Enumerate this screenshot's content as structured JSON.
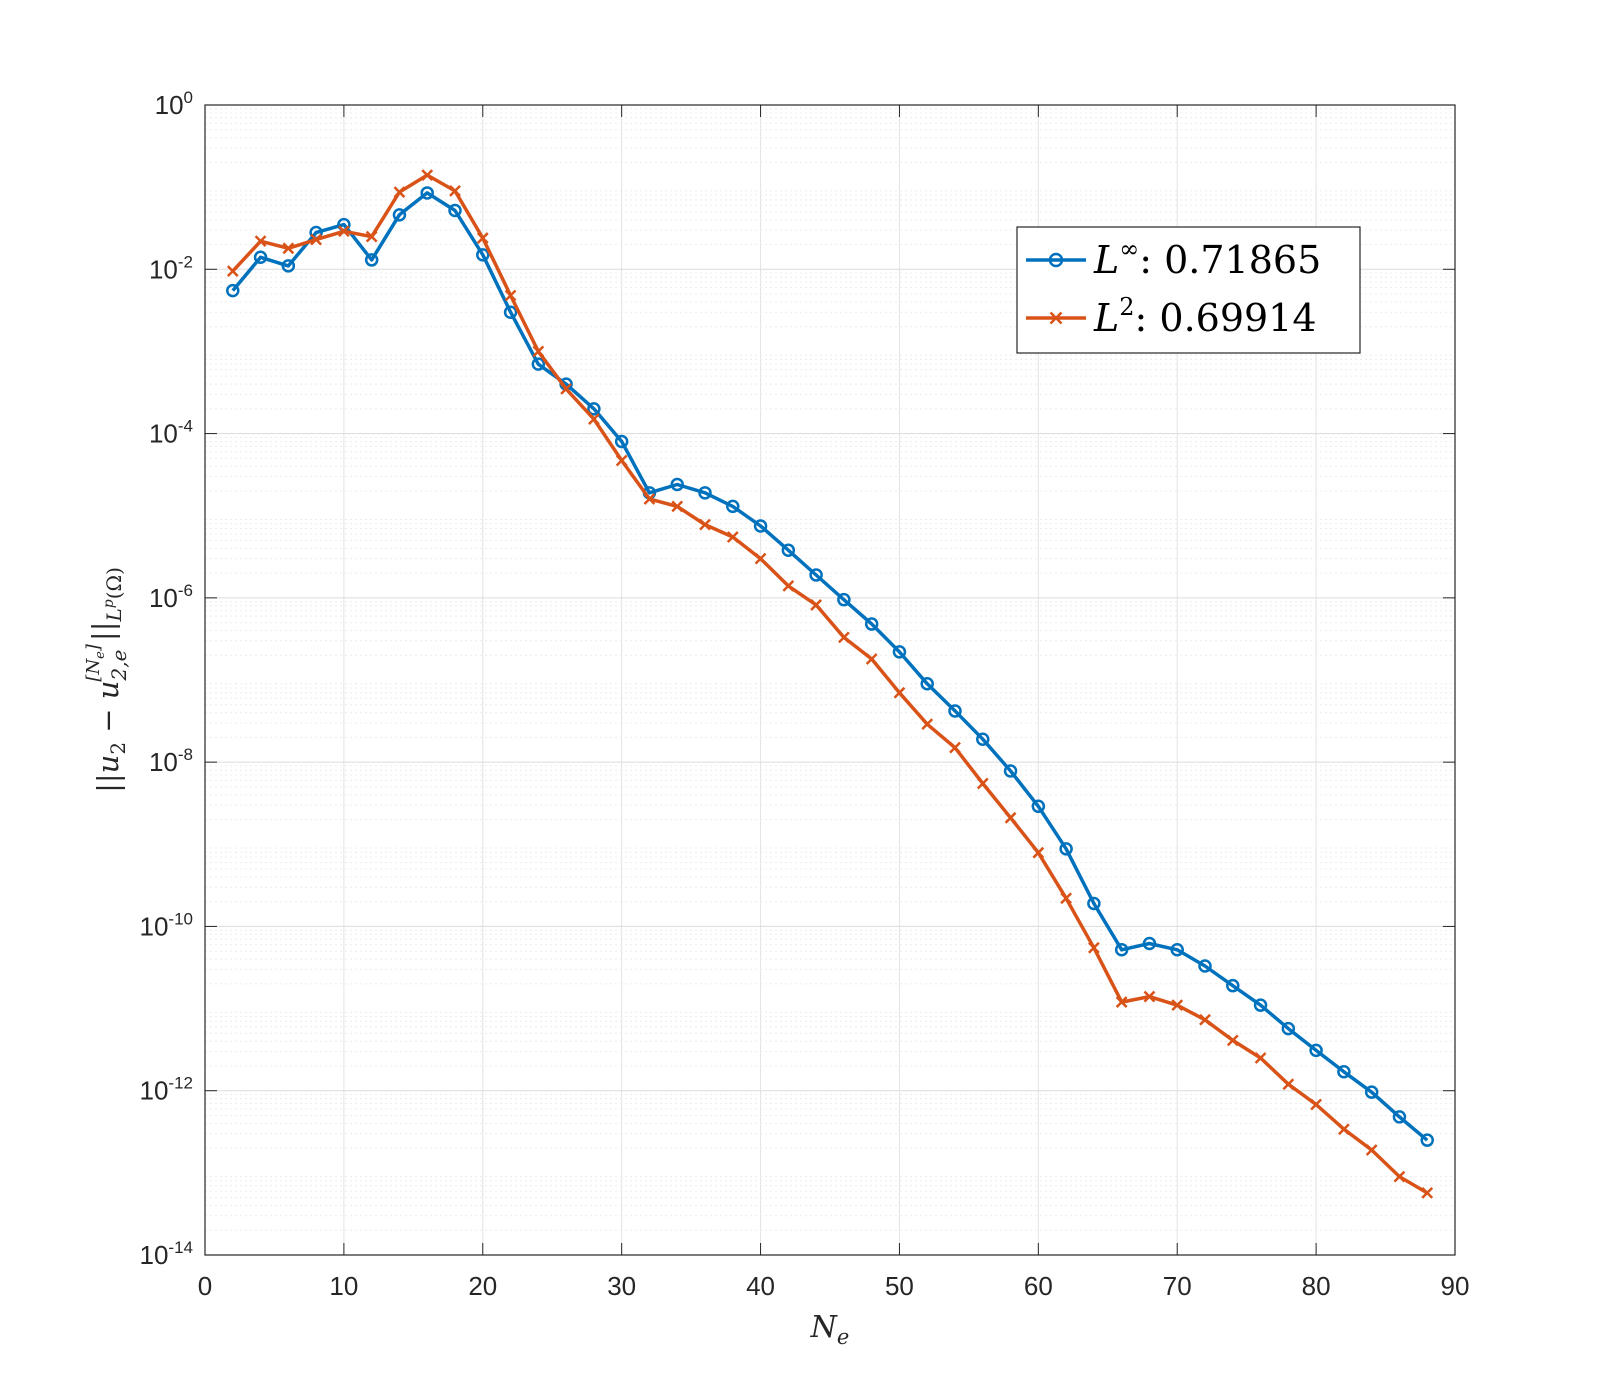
{
  "chart_data": {
    "type": "line",
    "yscale": "log",
    "xlabel": "N_e",
    "ylabel": "||u_2 - u_{2,e}^{[N_e]}||_{L^p(Ω)}",
    "xlim": [
      0,
      90
    ],
    "ylim_exponent": [
      -14,
      0
    ],
    "xticks": [
      0,
      10,
      20,
      30,
      40,
      50,
      60,
      70,
      80,
      90
    ],
    "yticks_exponent": [
      -14,
      -12,
      -10,
      -8,
      -6,
      -4,
      -2,
      0
    ],
    "ytick_base": "10",
    "grid": true,
    "minor_grid": true,
    "legend_position": "top-right",
    "x": [
      2,
      4,
      6,
      8,
      10,
      12,
      14,
      16,
      18,
      20,
      22,
      24,
      26,
      28,
      30,
      32,
      34,
      36,
      38,
      40,
      42,
      44,
      46,
      48,
      50,
      52,
      54,
      56,
      58,
      60,
      62,
      64,
      66,
      68,
      70,
      72,
      74,
      76,
      78,
      80,
      82,
      84,
      86,
      88
    ],
    "series": [
      {
        "name": "L∞",
        "rate": "0.71865",
        "legend_sup": "∞",
        "legend_value": ": 0.71865",
        "color": "#0072BD",
        "marker": "circle",
        "values": [
          0.0055,
          0.014,
          0.011,
          0.028,
          0.035,
          0.013,
          0.046,
          0.085,
          0.052,
          0.015,
          0.003,
          0.0007,
          0.0004,
          0.0002,
          8e-05,
          1.9e-05,
          2.4e-05,
          1.9e-05,
          1.3e-05,
          7.5e-06,
          3.8e-06,
          1.9e-06,
          9.5e-07,
          4.8e-07,
          2.2e-07,
          9e-08,
          4.2e-08,
          1.9e-08,
          7.8e-09,
          2.9e-09,
          8.8e-10,
          1.9e-10,
          5.2e-11,
          6.2e-11,
          5.2e-11,
          3.3e-11,
          1.9e-11,
          1.1e-11,
          5.7e-12,
          3.1e-12,
          1.7e-12,
          9.6e-13,
          4.8e-13,
          2.5e-13
        ]
      },
      {
        "name": "L2",
        "rate": "0.69914",
        "legend_sup": "2",
        "legend_value": ": 0.69914",
        "color": "#D95319",
        "marker": "x",
        "values": [
          0.0095,
          0.022,
          0.018,
          0.023,
          0.029,
          0.025,
          0.087,
          0.14,
          0.09,
          0.024,
          0.0048,
          0.001,
          0.00035,
          0.00015,
          4.7e-05,
          1.6e-05,
          1.3e-05,
          7.8e-06,
          5.5e-06,
          3e-06,
          1.4e-06,
          8.2e-07,
          3.3e-07,
          1.8e-07,
          7e-08,
          2.9e-08,
          1.5e-08,
          5.5e-09,
          2.1e-09,
          7.9e-10,
          2.2e-10,
          5.5e-11,
          1.2e-11,
          1.4e-11,
          1.1e-11,
          7.3e-12,
          4.1e-12,
          2.5e-12,
          1.2e-12,
          6.8e-13,
          3.4e-13,
          1.9e-13,
          9e-14,
          5.7e-14
        ]
      }
    ]
  }
}
